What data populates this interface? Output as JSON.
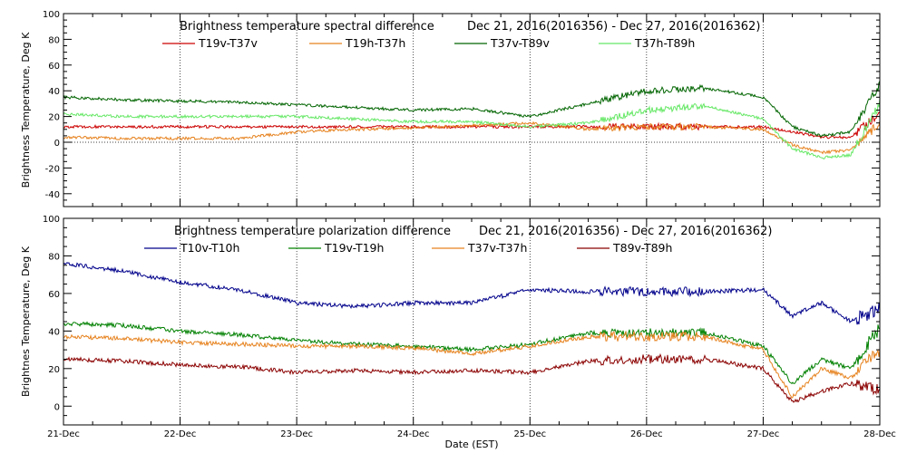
{
  "xlabel": "Date (EST)",
  "chart_data": [
    {
      "type": "line",
      "title": "Brightness temperature spectral difference",
      "date_range": "Dec 21, 2016(2016356) - Dec 27, 2016(2016362)",
      "ylabel": "Brightness Temperature, Deg K",
      "xlabel": "Date (EST)",
      "xlim": [
        0,
        7
      ],
      "ylim": [
        -50,
        100
      ],
      "yticks": [
        -40,
        -20,
        0,
        20,
        40,
        60,
        80,
        100
      ],
      "xticks": [
        "21-Dec",
        "22-Dec",
        "23-Dec",
        "24-Dec",
        "25-Dec",
        "26-Dec",
        "27-Dec",
        "28-Dec"
      ],
      "x": [
        0,
        0.5,
        1,
        1.5,
        2,
        2.5,
        3,
        3.5,
        4,
        4.5,
        5,
        5.5,
        6,
        6.25,
        6.5,
        6.75,
        7
      ],
      "series": [
        {
          "name": "T19v-T37v",
          "color": "#cc0000",
          "values": [
            12,
            12,
            12,
            12,
            12,
            12,
            12,
            12,
            12,
            12,
            12,
            12,
            12,
            8,
            4,
            4,
            22
          ]
        },
        {
          "name": "T19h-T37h",
          "color": "#e6821e",
          "values": [
            4,
            3,
            3,
            3,
            8,
            10,
            11,
            13,
            15,
            10,
            12,
            12,
            10,
            -2,
            -8,
            -6,
            15
          ]
        },
        {
          "name": "T37v-T89v",
          "color": "#006400",
          "values": [
            35,
            33,
            32,
            31,
            29,
            27,
            25,
            26,
            20,
            30,
            40,
            42,
            35,
            12,
            5,
            8,
            45
          ]
        },
        {
          "name": "T37h-T89h",
          "color": "#66e866",
          "values": [
            22,
            20,
            20,
            20,
            20,
            18,
            16,
            16,
            12,
            15,
            25,
            28,
            18,
            -5,
            -12,
            -10,
            30
          ]
        }
      ]
    },
    {
      "type": "line",
      "title": "Brightness temperature polarization difference",
      "date_range": "Dec 21, 2016(2016356) - Dec 27, 2016(2016362)",
      "ylabel": "Brightnes Temperature, Deg K",
      "xlabel": "Date (EST)",
      "xlim": [
        0,
        7
      ],
      "ylim": [
        -10,
        100
      ],
      "yticks": [
        0,
        20,
        40,
        60,
        80,
        100
      ],
      "xticks": [
        "21-Dec",
        "22-Dec",
        "23-Dec",
        "24-Dec",
        "25-Dec",
        "26-Dec",
        "27-Dec",
        "28-Dec"
      ],
      "x": [
        0,
        0.5,
        1,
        1.5,
        2,
        2.5,
        3,
        3.5,
        4,
        4.5,
        5,
        5.5,
        6,
        6.25,
        6.5,
        6.75,
        7
      ],
      "series": [
        {
          "name": "T10v-T10h",
          "color": "#00008b",
          "values": [
            76,
            72,
            66,
            62,
            55,
            53,
            55,
            55,
            62,
            61,
            61,
            61,
            62,
            48,
            55,
            45,
            52
          ]
        },
        {
          "name": "T19v-T19h",
          "color": "#008000",
          "values": [
            44,
            43,
            40,
            38,
            35,
            33,
            32,
            30,
            33,
            39,
            39,
            39,
            32,
            12,
            25,
            20,
            42
          ]
        },
        {
          "name": "T37v-T37h",
          "color": "#e6821e",
          "values": [
            37,
            36,
            34,
            33,
            32,
            32,
            31,
            28,
            32,
            37,
            37,
            37,
            30,
            5,
            20,
            15,
            30
          ]
        },
        {
          "name": "T89v-T89h",
          "color": "#8b0000",
          "values": [
            25,
            24,
            22,
            21,
            18,
            19,
            18,
            19,
            18,
            24,
            25,
            25,
            20,
            2,
            8,
            12,
            8
          ]
        }
      ]
    }
  ]
}
